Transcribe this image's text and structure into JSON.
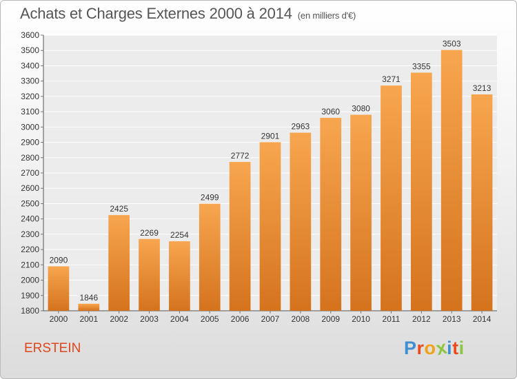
{
  "header": {
    "title": "Achats et Charges Externes 2000 à 2014",
    "unit": "(en milliers d'€)"
  },
  "footer": {
    "place": "ERSTEIN",
    "logo_text": "Proxiti"
  },
  "colors": {
    "bar_top": "#f7a64f",
    "bar_bottom": "#d5731d",
    "place": "#e0461b",
    "logo_letters": [
      "#3f8fd2",
      "#e84c1c",
      "#f2a21a",
      "#8cc63f",
      "#3f8fd2",
      "#e84c1c",
      "#8cc63f"
    ]
  },
  "chart_data": {
    "type": "bar",
    "title": "Achats et Charges Externes 2000 à 2014",
    "categories": [
      "2000",
      "2001",
      "2002",
      "2003",
      "2004",
      "2005",
      "2006",
      "2007",
      "2008",
      "2009",
      "2010",
      "2011",
      "2012",
      "2013",
      "2014"
    ],
    "values": [
      2090,
      1846,
      2425,
      2269,
      2254,
      2499,
      2772,
      2901,
      2963,
      3060,
      3080,
      3271,
      3355,
      3503,
      3213
    ],
    "ylim": [
      1800,
      3600
    ],
    "yticks": [
      1800,
      1900,
      2000,
      2100,
      2200,
      2300,
      2400,
      2500,
      2600,
      2700,
      2800,
      2900,
      3000,
      3100,
      3200,
      3300,
      3400,
      3500,
      3600
    ],
    "grid": true,
    "xlabel": "",
    "ylabel": ""
  }
}
